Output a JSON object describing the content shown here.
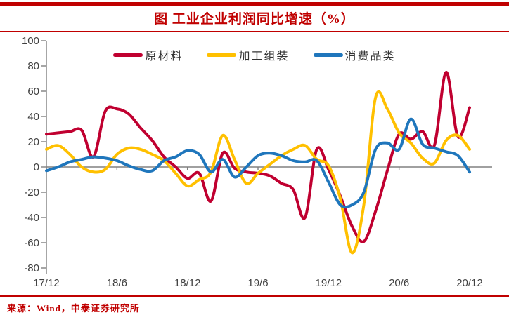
{
  "header": {
    "title": "图  工业企业利润同比增速（%）",
    "accent_color": "#C00000"
  },
  "source": {
    "label": "来源：Wind，中泰证券研究所"
  },
  "axis_colors": {
    "axis_line": "#808080",
    "tick_label": "#404040"
  },
  "chart_data": {
    "type": "line",
    "title": "图 工业企业利润同比增速（%）",
    "xlabel": "",
    "ylabel": "",
    "ylim": [
      -80,
      100
    ],
    "ytick_step": 20,
    "yticks": [
      100,
      80,
      60,
      40,
      20,
      0,
      -20,
      -40,
      -60,
      -80
    ],
    "x_tick_labels": [
      "17/12",
      "18/6",
      "18/12",
      "19/6",
      "19/12",
      "20/6",
      "20/12"
    ],
    "grid": "zero-line-only",
    "legend_position": "top-center",
    "months": [
      "17/12",
      "18/1",
      "18/2",
      "18/3",
      "18/4",
      "18/5",
      "18/6",
      "18/7",
      "18/8",
      "18/9",
      "18/10",
      "18/11",
      "18/12",
      "19/1",
      "19/2",
      "19/3",
      "19/4",
      "19/5",
      "19/6",
      "19/7",
      "19/8",
      "19/9",
      "19/10",
      "19/11",
      "19/12",
      "20/1",
      "20/2",
      "20/3",
      "20/4",
      "20/5",
      "20/6",
      "20/7",
      "20/8",
      "20/9",
      "20/10",
      "20/11",
      "20/12"
    ],
    "series": [
      {
        "name": "原材料",
        "color": "#C00030",
        "values": [
          26,
          27,
          28,
          29,
          8,
          44,
          46,
          42,
          31,
          21,
          8,
          0,
          -9,
          -5,
          -27,
          11,
          -1,
          -4,
          -5,
          -7,
          -13,
          -18,
          -40,
          14,
          -2,
          -23,
          -47,
          -59,
          -35,
          -3,
          26,
          22,
          28,
          17,
          75,
          24,
          47
        ]
      },
      {
        "name": "加工组装",
        "color": "#FFC000",
        "values": [
          14,
          17,
          10,
          0,
          -4,
          -2,
          10,
          15,
          14,
          10,
          5,
          -5,
          -15,
          -10,
          -4,
          25,
          6,
          -13,
          -5,
          2,
          9,
          14,
          17,
          6,
          1,
          -25,
          -68,
          -30,
          55,
          46,
          27,
          19,
          7,
          3,
          21,
          25,
          14
        ]
      },
      {
        "name": "消费品类",
        "color": "#1F76BC",
        "values": [
          -3,
          0,
          4,
          6,
          8,
          7,
          5,
          1,
          -2,
          -3,
          5,
          8,
          13,
          10,
          -4,
          6,
          -8,
          0,
          9,
          11,
          9,
          5,
          4,
          5,
          -12,
          -30,
          -30,
          -20,
          14,
          19,
          14,
          38,
          18,
          15,
          12,
          9,
          -4
        ]
      }
    ]
  }
}
